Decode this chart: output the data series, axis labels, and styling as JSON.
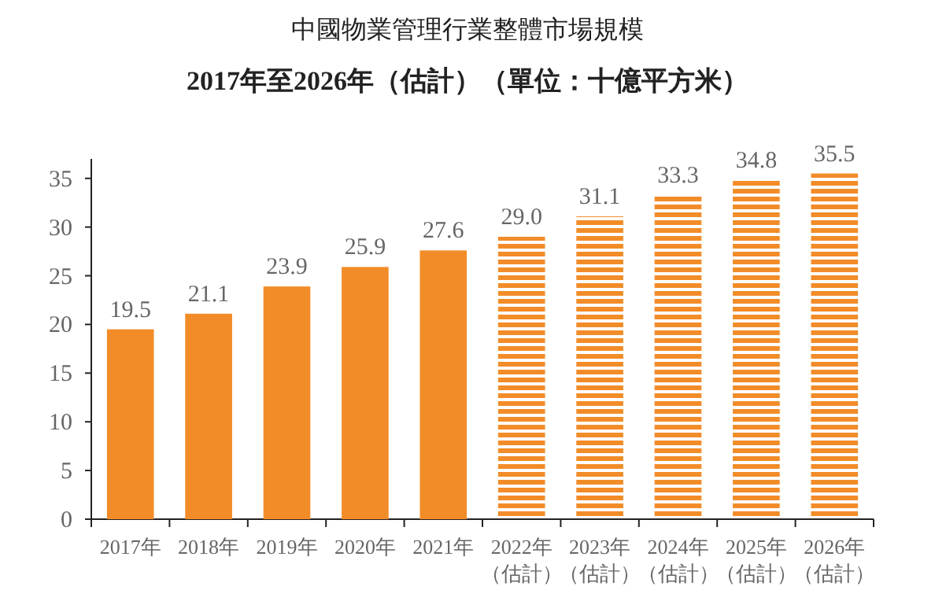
{
  "chart_data": {
    "type": "bar",
    "title": "中國物業管理行業整體市場規模",
    "subtitle": "2017年至2026年（估計）（單位：十億平方米）",
    "categories": [
      "2017年",
      "2018年",
      "2019年",
      "2020年",
      "2021年",
      "2022年（估計）",
      "2023年（估計）",
      "2024年（估計）",
      "2025年（估計）",
      "2026年（估計）"
    ],
    "series": [
      {
        "color": "#f28c28",
        "values": [
          19.5,
          21.1,
          23.9,
          25.9,
          27.6,
          null,
          null,
          null,
          null,
          null
        ],
        "value_labels": [
          "19.5",
          "21.1",
          "23.9",
          "25.9",
          "27.6",
          null,
          null,
          null,
          null,
          null
        ]
      },
      {
        "color": "#f28c28",
        "values": [
          null,
          null,
          null,
          null,
          null,
          29.0,
          31.1,
          33.3,
          34.8,
          35.5
        ],
        "value_labels": [
          null,
          null,
          null,
          null,
          null,
          "29.0",
          "31.1",
          "33.3",
          "34.8",
          "35.5"
        ]
      }
    ],
    "ylim": [
      0,
      37
    ],
    "yticks": [
      0,
      5,
      10,
      15,
      20,
      25,
      30,
      35
    ],
    "grid": false
  }
}
